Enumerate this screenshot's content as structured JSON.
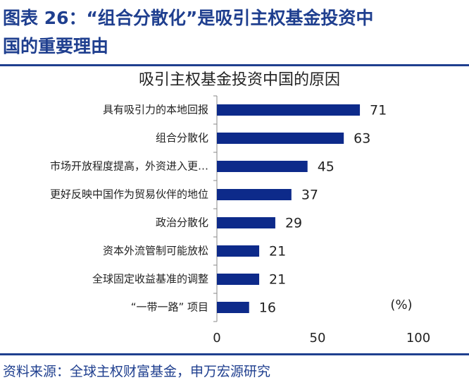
{
  "header": {
    "title": [
      "图表 26：“组合分散化”是吸引主权基金投资中",
      "国的重要理由"
    ]
  },
  "chart_data": {
    "type": "bar",
    "orientation": "horizontal",
    "title": "吸引主权基金投资中国的原因",
    "categories": [
      "具有吸引力的本地回报",
      "组合分散化",
      "市场开放程度提高，外资进入更…",
      "更好反映中国作为贸易伙伴的地位",
      "政治分散化",
      "资本外流管制可能放松",
      "全球固定收益基准的调整",
      "“一带一路” 项目"
    ],
    "values": [
      71,
      63,
      45,
      37,
      29,
      21,
      21,
      16
    ],
    "color": "#0d2a8a",
    "xlim": [
      0,
      100
    ],
    "xticks": [
      0,
      50,
      100
    ],
    "annotation": "(%)",
    "grid": false
  },
  "footer": {
    "source": "资料来源：全球主权财富基金，申万宏源研究"
  }
}
